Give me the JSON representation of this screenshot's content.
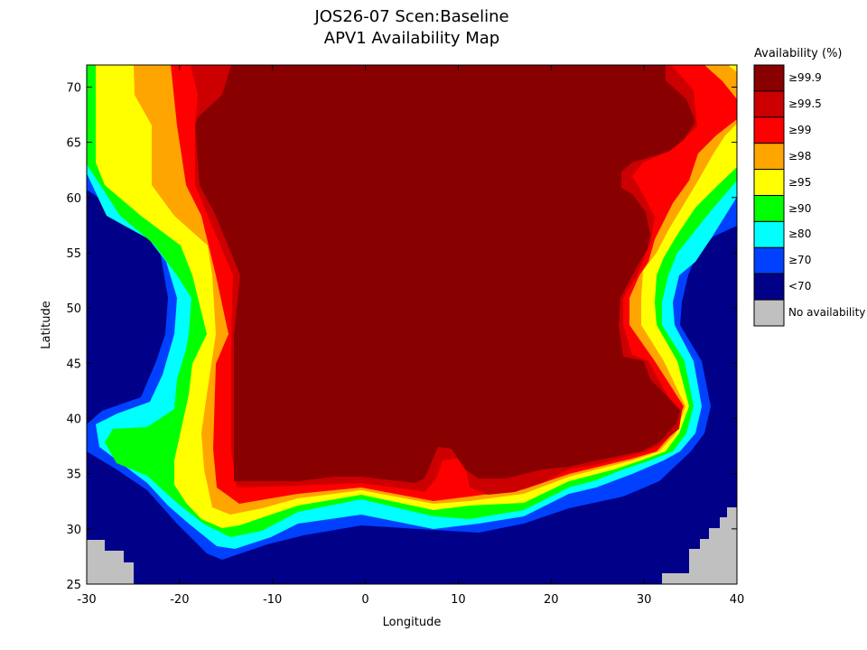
{
  "title_line1": "JOS26-07 Scen:Baseline",
  "title_line2": "APV1 Availability Map",
  "chart_data": {
    "type": "heatmap",
    "title": "JOS26-07 Scen:Baseline APV1 Availability Map",
    "xlabel": "Longitude",
    "ylabel": "Latitude",
    "xlim": [
      -30,
      40
    ],
    "ylim": [
      25,
      72
    ],
    "xticks": [
      "-30",
      "-20",
      "-10",
      "0",
      "10",
      "20",
      "30",
      "40"
    ],
    "yticks": [
      "25",
      "30",
      "35",
      "40",
      "45",
      "50",
      "55",
      "60",
      "65",
      "70"
    ],
    "grid": false,
    "legend_position": "right",
    "legend": {
      "title": "Availability (%)",
      "items": [
        {
          "label": "≥99.9",
          "color": "#880000"
        },
        {
          "label": "≥99.5",
          "color": "#cc0000"
        },
        {
          "label": "≥99",
          "color": "#ff0000"
        },
        {
          "label": "≥98",
          "color": "#ffa500"
        },
        {
          "label": "≥95",
          "color": "#ffff00"
        },
        {
          "label": "≥90",
          "color": "#00ff00"
        },
        {
          "label": "≥80",
          "color": "#00ffff"
        },
        {
          "label": "≥70",
          "color": "#0040ff"
        },
        {
          "label": "<70",
          "color": "#000088"
        },
        {
          "label": "No availability",
          "color": "#c0c0c0"
        }
      ]
    }
  }
}
